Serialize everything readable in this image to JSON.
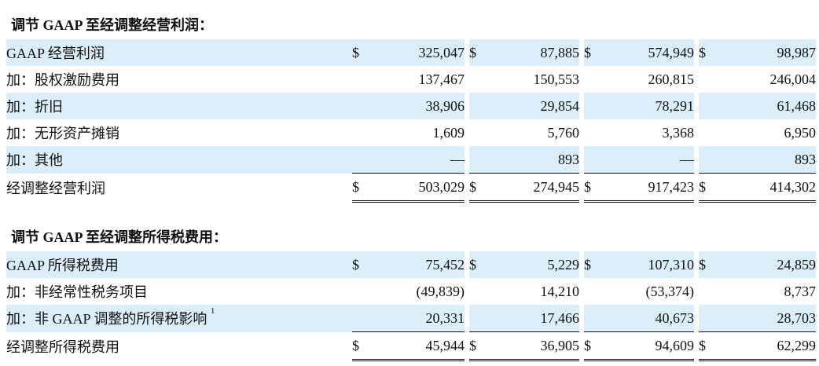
{
  "section1": {
    "title": "调节 GAAP 至经调整经营利润：",
    "rows": [
      {
        "label": "GAAP 经营利润",
        "c1": "$",
        "v1": "325,047",
        "c2": "$",
        "v2": "87,885",
        "c3": "$",
        "v3": "574,949",
        "c4": "$",
        "v4": "98,987"
      },
      {
        "label": "加：股权激励费用",
        "c1": "",
        "v1": "137,467",
        "c2": "",
        "v2": "150,553",
        "c3": "",
        "v3": "260,815",
        "c4": "",
        "v4": "246,004"
      },
      {
        "label": "加：折旧",
        "c1": "",
        "v1": "38,906",
        "c2": "",
        "v2": "29,854",
        "c3": "",
        "v3": "78,291",
        "c4": "",
        "v4": "61,468"
      },
      {
        "label": "加：无形资产摊销",
        "c1": "",
        "v1": "1,609",
        "c2": "",
        "v2": "5,760",
        "c3": "",
        "v3": "3,368",
        "c4": "",
        "v4": "6,950"
      },
      {
        "label": "加：其他",
        "c1": "",
        "v1": "—",
        "c2": "",
        "v2": "893",
        "c3": "",
        "v3": "—",
        "c4": "",
        "v4": "893"
      },
      {
        "label": "经调整经营利润",
        "c1": "$",
        "v1": "503,029",
        "c2": "$",
        "v2": "274,945",
        "c3": "$",
        "v3": "917,423",
        "c4": "$",
        "v4": "414,302"
      }
    ]
  },
  "section2": {
    "title": "调节 GAAP 至经调整所得税费用：",
    "rows": [
      {
        "label": "GAAP 所得税费用",
        "c1": "$",
        "v1": "75,452",
        "c2": "$",
        "v2": "5,229",
        "c3": "$",
        "v3": "107,310",
        "c4": "$",
        "v4": "24,859"
      },
      {
        "label": "加：非经常性税务项目",
        "c1": "",
        "v1": "(49,839)",
        "c2": "",
        "v2": "14,210",
        "c3": "",
        "v3": "(53,374)",
        "c4": "",
        "v4": "8,737"
      },
      {
        "label": "加：非 GAAP 调整的所得税影响",
        "sup": "1",
        "c1": "",
        "v1": "20,331",
        "c2": "",
        "v2": "17,466",
        "c3": "",
        "v3": "40,673",
        "c4": "",
        "v4": "28,703"
      },
      {
        "label": "经调整所得税费用",
        "c1": "$",
        "v1": "45,944",
        "c2": "$",
        "v2": "36,905",
        "c3": "$",
        "v3": "94,609",
        "c4": "$",
        "v4": "62,299"
      }
    ]
  }
}
